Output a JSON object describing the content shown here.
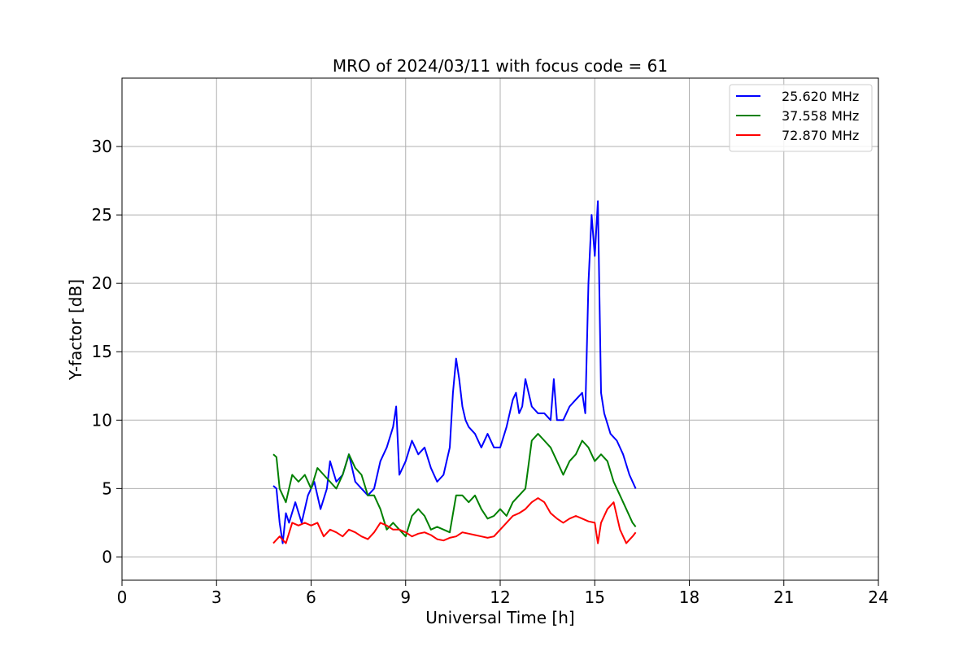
{
  "chart_data": {
    "type": "line",
    "title": "MRO of 2024/03/11 with focus code = 61",
    "xlabel": "Universal Time [h]",
    "ylabel": "Y-factor [dB]",
    "xlim": [
      0,
      24
    ],
    "ylim": [
      -1.7,
      35
    ],
    "xticks": [
      0,
      3,
      6,
      9,
      12,
      15,
      18,
      21,
      24
    ],
    "yticks": [
      0,
      5,
      10,
      15,
      20,
      25,
      30
    ],
    "grid": true,
    "legend_position": "top-right",
    "series": [
      {
        "name": "25.620 MHz",
        "color": "#0000ff",
        "x": [
          4.8,
          4.9,
          5.0,
          5.1,
          5.2,
          5.3,
          5.5,
          5.7,
          5.9,
          6.1,
          6.3,
          6.5,
          6.6,
          6.8,
          7.0,
          7.2,
          7.4,
          7.6,
          7.8,
          8.0,
          8.2,
          8.4,
          8.6,
          8.7,
          8.8,
          9.0,
          9.2,
          9.4,
          9.6,
          9.8,
          10.0,
          10.2,
          10.4,
          10.5,
          10.6,
          10.7,
          10.8,
          10.9,
          11.0,
          11.2,
          11.4,
          11.6,
          11.8,
          12.0,
          12.2,
          12.4,
          12.5,
          12.6,
          12.7,
          12.8,
          12.9,
          13.0,
          13.2,
          13.4,
          13.6,
          13.7,
          13.8,
          14.0,
          14.2,
          14.4,
          14.6,
          14.7,
          14.8,
          14.9,
          15.0,
          15.1,
          15.2,
          15.3,
          15.5,
          15.7,
          15.9,
          16.1,
          16.3
        ],
        "values": [
          5.2,
          5.0,
          2.5,
          1.0,
          3.2,
          2.5,
          4.0,
          2.5,
          4.5,
          5.5,
          3.5,
          5.0,
          7.0,
          5.5,
          6.0,
          7.5,
          5.5,
          5.0,
          4.5,
          5.0,
          7.0,
          8.0,
          9.5,
          11.0,
          6.0,
          7.0,
          8.5,
          7.5,
          8.0,
          6.5,
          5.5,
          6.0,
          8.0,
          12.0,
          14.5,
          13.0,
          11.0,
          10.0,
          9.5,
          9.0,
          8.0,
          9.0,
          8.0,
          8.0,
          9.5,
          11.5,
          12.0,
          10.5,
          11.0,
          13.0,
          12.0,
          11.0,
          10.5,
          10.5,
          10.0,
          13.0,
          10.0,
          10.0,
          11.0,
          11.5,
          12.0,
          10.5,
          20.0,
          25.0,
          22.0,
          26.0,
          12.0,
          10.5,
          9.0,
          8.5,
          7.5,
          6.0,
          5.0
        ]
      },
      {
        "name": "37.558 MHz",
        "color": "#008000",
        "x": [
          4.8,
          4.9,
          5.0,
          5.2,
          5.4,
          5.6,
          5.8,
          6.0,
          6.2,
          6.4,
          6.6,
          6.8,
          7.0,
          7.2,
          7.4,
          7.6,
          7.8,
          8.0,
          8.2,
          8.4,
          8.6,
          8.8,
          9.0,
          9.2,
          9.4,
          9.6,
          9.8,
          10.0,
          10.2,
          10.4,
          10.6,
          10.8,
          11.0,
          11.2,
          11.4,
          11.6,
          11.8,
          12.0,
          12.2,
          12.4,
          12.6,
          12.8,
          13.0,
          13.2,
          13.4,
          13.6,
          13.8,
          14.0,
          14.2,
          14.4,
          14.6,
          14.8,
          15.0,
          15.2,
          15.4,
          15.6,
          15.8,
          16.0,
          16.2,
          16.3
        ],
        "values": [
          7.5,
          7.3,
          5.0,
          4.0,
          6.0,
          5.5,
          6.0,
          5.0,
          6.5,
          6.0,
          5.5,
          5.0,
          6.0,
          7.5,
          6.5,
          6.0,
          4.5,
          4.5,
          3.5,
          2.0,
          2.5,
          2.0,
          1.5,
          3.0,
          3.5,
          3.0,
          2.0,
          2.2,
          2.0,
          1.8,
          4.5,
          4.5,
          4.0,
          4.5,
          3.5,
          2.8,
          3.0,
          3.5,
          3.0,
          4.0,
          4.5,
          5.0,
          8.5,
          9.0,
          8.5,
          8.0,
          7.0,
          6.0,
          7.0,
          7.5,
          8.5,
          8.0,
          7.0,
          7.5,
          7.0,
          5.5,
          4.5,
          3.5,
          2.5,
          2.2
        ]
      },
      {
        "name": "72.870 MHz",
        "color": "#ff0000",
        "x": [
          4.8,
          5.0,
          5.2,
          5.4,
          5.6,
          5.8,
          6.0,
          6.2,
          6.4,
          6.6,
          6.8,
          7.0,
          7.2,
          7.4,
          7.6,
          7.8,
          8.0,
          8.2,
          8.4,
          8.6,
          8.8,
          9.0,
          9.2,
          9.4,
          9.6,
          9.8,
          10.0,
          10.2,
          10.4,
          10.6,
          10.8,
          11.0,
          11.2,
          11.4,
          11.6,
          11.8,
          12.0,
          12.2,
          12.4,
          12.6,
          12.8,
          13.0,
          13.2,
          13.4,
          13.6,
          13.8,
          14.0,
          14.2,
          14.4,
          14.6,
          14.8,
          15.0,
          15.1,
          15.2,
          15.4,
          15.6,
          15.8,
          16.0,
          16.2,
          16.3
        ],
        "values": [
          1.0,
          1.5,
          1.0,
          2.5,
          2.3,
          2.5,
          2.3,
          2.5,
          1.5,
          2.0,
          1.8,
          1.5,
          2.0,
          1.8,
          1.5,
          1.3,
          1.8,
          2.5,
          2.3,
          2.0,
          2.0,
          1.8,
          1.5,
          1.7,
          1.8,
          1.6,
          1.3,
          1.2,
          1.4,
          1.5,
          1.8,
          1.7,
          1.6,
          1.5,
          1.4,
          1.5,
          2.0,
          2.5,
          3.0,
          3.2,
          3.5,
          4.0,
          4.3,
          4.0,
          3.2,
          2.8,
          2.5,
          2.8,
          3.0,
          2.8,
          2.6,
          2.5,
          1.0,
          2.5,
          3.5,
          4.0,
          2.0,
          1.0,
          1.5,
          1.8
        ]
      }
    ]
  }
}
